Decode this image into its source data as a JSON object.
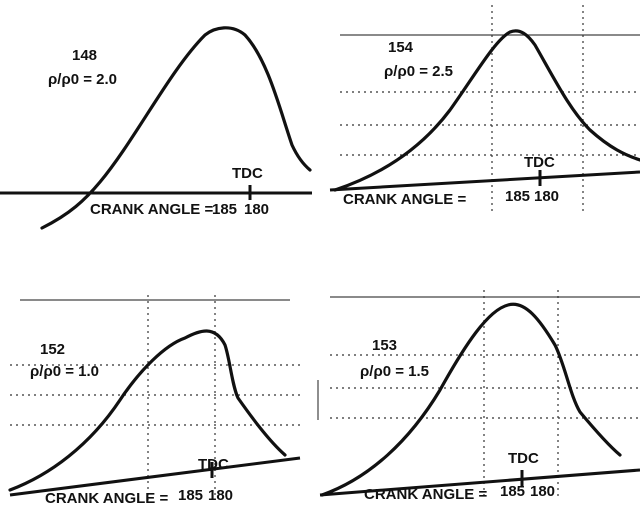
{
  "panels": [
    {
      "run": "148",
      "ratio": "ρ/ρ0 = 2.0",
      "tdc": "TDC",
      "axis_label": "CRANK ANGLE =",
      "ticks": [
        "185",
        "180"
      ]
    },
    {
      "run": "154",
      "ratio": "ρ/ρ0 = 2.5",
      "tdc": "TDC",
      "axis_label": "CRANK ANGLE =",
      "ticks": [
        "185",
        "180"
      ]
    },
    {
      "run": "152",
      "ratio": "ρ/ρ0 = 1.0",
      "tdc": "TDC",
      "axis_label": "CRANK ANGLE =",
      "ticks": [
        "185",
        "180"
      ]
    },
    {
      "run": "153",
      "ratio": "ρ/ρ0 = 1.5",
      "tdc": "TDC",
      "axis_label": "CRANK ANGLE =",
      "ticks": [
        "185",
        "180"
      ]
    }
  ]
}
